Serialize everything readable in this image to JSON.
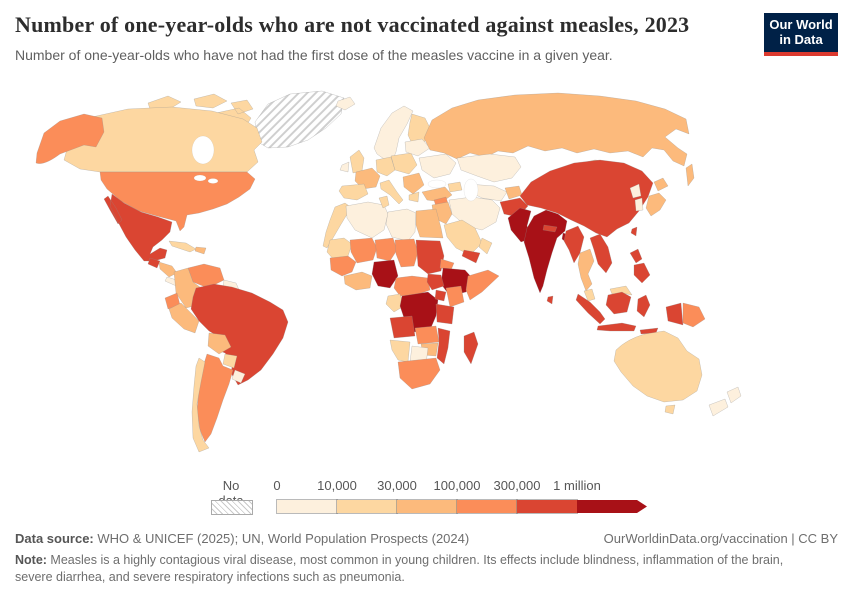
{
  "header": {
    "title": "Number of one-year-olds who are not vaccinated against measles, 2023",
    "subtitle": "Number of one-year-olds who have not had the first dose of the measles vaccine in a given year.",
    "logo_line1": "Our World",
    "logo_line2": "in Data",
    "logo_bg": "#002147",
    "logo_accent": "#dc3a2f"
  },
  "legend": {
    "no_data_label": "No data",
    "tick_labels": [
      "0",
      "10,000",
      "30,000",
      "100,000",
      "300,000",
      "1 million"
    ]
  },
  "footer": {
    "source_label": "Data source:",
    "source_text": " WHO & UNICEF (2025); UN, World Population Prospects (2024)",
    "link_text": "OurWorldinData.org/vaccination | CC BY",
    "note_label": "Note:",
    "note_text": " Measles is a highly contagious viral disease, most common in young children. Its effects include blindness, inflammation of the brain, severe diarrhea, and severe respiratory infections such as pneumonia."
  },
  "chart_data": {
    "type": "heatmap",
    "title": "Number of one-year-olds who are not vaccinated against measles, 2023",
    "legend_position": "bottom",
    "bins": [
      {
        "range": "0-10,000",
        "color": "#fdf0dd"
      },
      {
        "range": "10,000-30,000",
        "color": "#fdd7a1"
      },
      {
        "range": "30,000-100,000",
        "color": "#fcba7c"
      },
      {
        "range": "100,000-300,000",
        "color": "#fb8d59"
      },
      {
        "range": "300,000-1 million",
        "color": "#da4532"
      },
      {
        "range": "1 million+",
        "color": "#a81117"
      }
    ],
    "palette": {
      "bin0": "#fdf0dd",
      "bin1": "#fdd7a1",
      "bin2": "#fcba7c",
      "bin3": "#fb8d59",
      "bin4": "#da4532",
      "bin5": "#a81117"
    },
    "regions": {
      "greenland": "no_data",
      "canada": "bin1",
      "canada-arctic": "bin1",
      "alaska": "bin3",
      "usa": "bin3",
      "mexico": "bin4",
      "guatemala": "bin4",
      "honduras-nicaragua": "bin2",
      "costa-rica-panama": "bin0",
      "cuba": "bin1",
      "hispaniola": "bin2",
      "venezuela": "bin3",
      "colombia": "bin2",
      "guyanas": "bin0",
      "ecuador": "bin3",
      "peru": "bin2",
      "brazil": "bin4",
      "bolivia": "bin2",
      "paraguay": "bin1",
      "argentina": "bin3",
      "chile": "bin1",
      "uruguay": "bin0",
      "iceland": "bin0",
      "norway-sweden": "bin0",
      "finland": "bin1",
      "uk": "bin1",
      "ireland": "bin0",
      "france": "bin2",
      "iberia": "bin1",
      "germany-central": "bin1",
      "italy": "bin1",
      "poland-east": "bin1",
      "balkans": "bin2",
      "greece": "bin1",
      "ukraine": "bin0",
      "belarus-baltics": "bin0",
      "russia": "bin2",
      "sakhalin": "bin2",
      "kazakhstan": "bin0",
      "uzbek-turkmen": "bin0",
      "kyrgyz-tajik": "bin2",
      "caucasus": "bin1",
      "turkey": "bin2",
      "syria": "bin3",
      "israel-jordan": "bin0",
      "iraq": "bin2",
      "iran": "bin0",
      "saudi": "bin1",
      "yemen": "bin4",
      "oman": "bin1",
      "afghanistan": "bin4",
      "pakistan": "bin5",
      "india": "bin5",
      "nepal": "bin4",
      "bangladesh": "bin5",
      "sri-lanka": "bin4",
      "china": "bin4",
      "mongolia": "bin2",
      "north-korea": "bin0",
      "south-korea": "bin0",
      "japan": "bin2",
      "taiwan": "bin4",
      "myanmar": "bin4",
      "thailand": "bin2",
      "vietnam-laos": "bin4",
      "malaysia": "bin1",
      "sumatra": "bin4",
      "borneo-malaysia": "bin1",
      "borneo-indonesia": "bin4",
      "java": "bin4",
      "sulawesi": "bin4",
      "lesser-sunda": "bin4",
      "papua-indonesia": "bin4",
      "papua-new-guinea": "bin3",
      "philippines": "bin4",
      "australia": "bin1",
      "tasmania": "bin1",
      "new-zealand": "bin0",
      "morocco-wsahara": "bin1",
      "algeria": "bin0",
      "tunisia": "bin1",
      "libya": "bin0",
      "egypt": "bin2",
      "mauritania-senegal": "bin1",
      "mali": "bin3",
      "niger": "bin3",
      "chad": "bin3",
      "sudan": "bin4",
      "eritrea-djibouti": "bin3",
      "ethiopia": "bin5",
      "somalia": "bin3",
      "west-africa-coast": "bin3",
      "ivory-ghana": "bin2",
      "nigeria": "bin5",
      "cameroon-car": "bin3",
      "south-sudan": "bin4",
      "gabon-congo": "bin1",
      "drc": "bin5",
      "uganda": "bin4",
      "kenya": "bin3",
      "tanzania": "bin4",
      "angola": "bin4",
      "zambia": "bin3",
      "mozambique-malawi": "bin4",
      "zimbabwe": "bin2",
      "botswana": "bin0",
      "namibia": "bin1",
      "south-africa": "bin3",
      "madagascar": "bin4"
    }
  }
}
